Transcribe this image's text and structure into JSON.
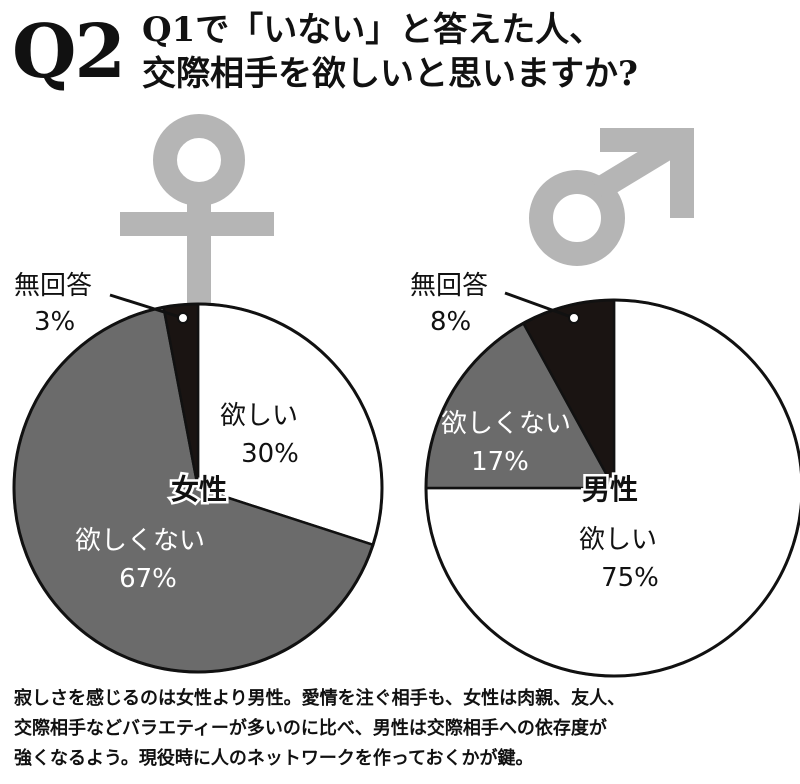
{
  "header": {
    "q_number": "Q2",
    "title_line1": "Q1で「いない」と答えた人、",
    "title_line2": "交際相手を欲しいと思いますか?"
  },
  "chart_data": [
    {
      "type": "pie",
      "title": "女性",
      "symbol": "female",
      "slices": [
        {
          "label": "欲しい",
          "value": 30,
          "value_label": "30%",
          "color": "#ffffff"
        },
        {
          "label": "欲しくない",
          "value": 67,
          "value_label": "67%",
          "color": "#6b6b6b"
        },
        {
          "label": "無回答",
          "value": 3,
          "value_label": "3%",
          "color": "#1a1412"
        }
      ]
    },
    {
      "type": "pie",
      "title": "男性",
      "symbol": "male",
      "slices": [
        {
          "label": "欲しい",
          "value": 75,
          "value_label": "75%",
          "color": "#ffffff"
        },
        {
          "label": "欲しくない",
          "value": 17,
          "value_label": "17%",
          "color": "#6b6b6b"
        },
        {
          "label": "無回答",
          "value": 8,
          "value_label": "8%",
          "color": "#1a1412"
        }
      ]
    }
  ],
  "symbol_color": "#b5b5b5",
  "caption": {
    "line1": "寂しさを感じるのは女性より男性。愛情を注ぐ相手も、女性は肉親、友人、",
    "line2": "交際相手などバラエティーが多いのに比べ、男性は交際相手への依存度が",
    "line3": "強くなるよう。現役時に人のネットワークを作っておくかが鍵。"
  }
}
